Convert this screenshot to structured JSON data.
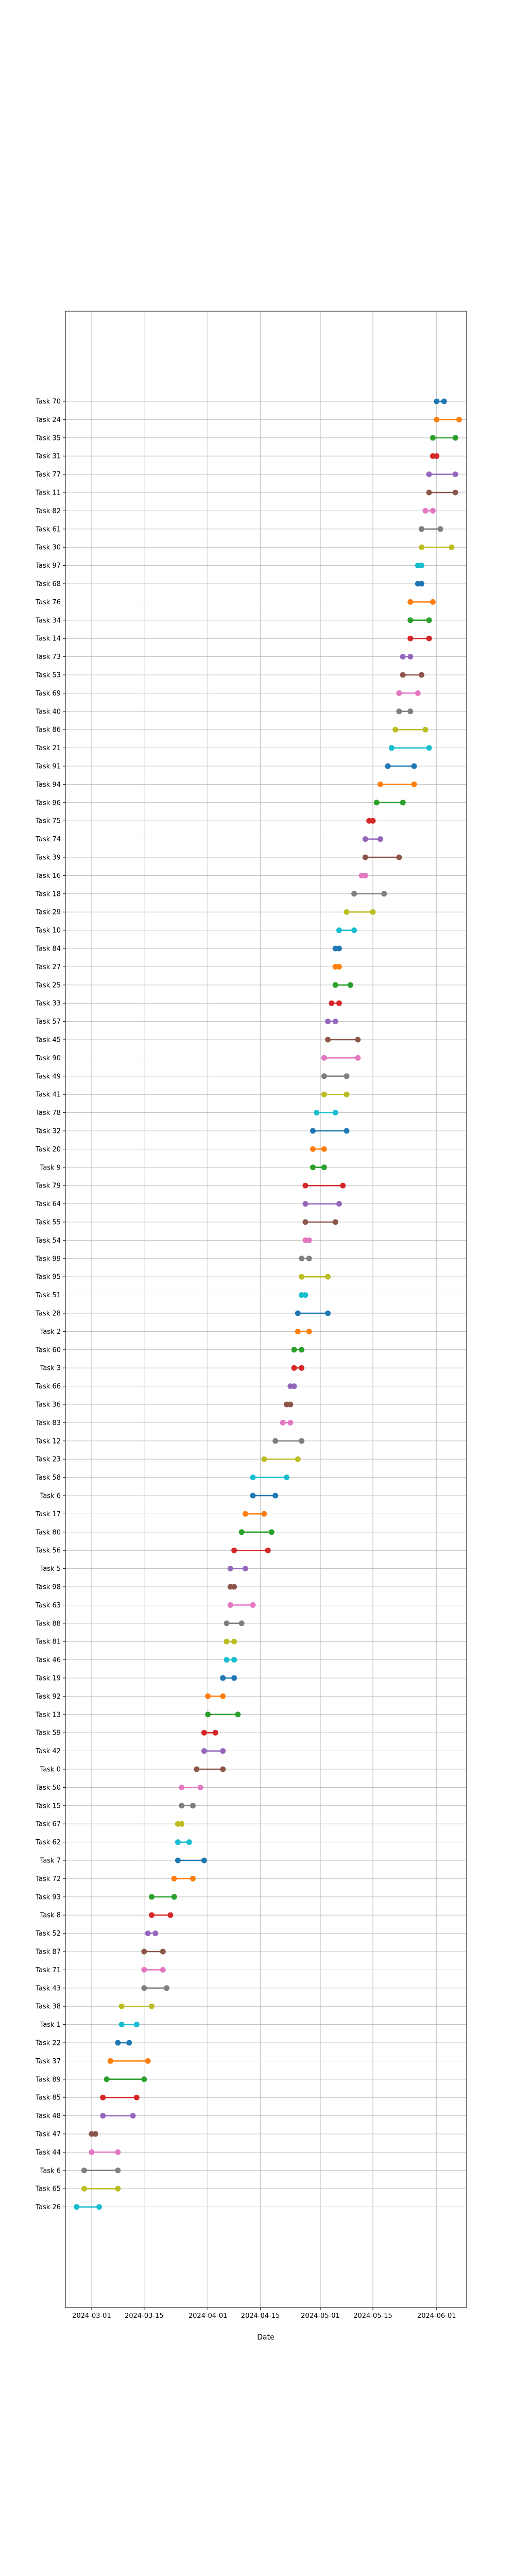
{
  "chart_data": {
    "type": "dumbbell",
    "title": "",
    "xlabel": "Date",
    "ylabel": "",
    "grid": true,
    "legend": "none",
    "x_ticks": [
      "2024-03-01",
      "2024-03-15",
      "2024-04-01",
      "2024-04-15",
      "2024-05-01",
      "2024-05-15",
      "2024-06-01"
    ],
    "xlim": [
      "2024-02-23",
      "2024-06-09"
    ],
    "palette": [
      "#1f77b4",
      "#ff7f0e",
      "#2ca02c",
      "#d62728",
      "#9467bd",
      "#8c564b",
      "#e377c2",
      "#7f7f7f",
      "#bcbd22",
      "#17becf"
    ],
    "tasks": [
      {
        "name": "Task 70",
        "start": "2024-06-01",
        "end": "2024-06-03"
      },
      {
        "name": "Task 24",
        "start": "2024-06-01",
        "end": "2024-06-07"
      },
      {
        "name": "Task 35",
        "start": "2024-05-31",
        "end": "2024-06-06"
      },
      {
        "name": "Task 31",
        "start": "2024-05-31",
        "end": "2024-06-01"
      },
      {
        "name": "Task 77",
        "start": "2024-05-30",
        "end": "2024-06-06"
      },
      {
        "name": "Task 11",
        "start": "2024-05-30",
        "end": "2024-06-06"
      },
      {
        "name": "Task 82",
        "start": "2024-05-29",
        "end": "2024-05-31"
      },
      {
        "name": "Task 61",
        "start": "2024-05-28",
        "end": "2024-06-02"
      },
      {
        "name": "Task 30",
        "start": "2024-05-28",
        "end": "2024-06-05"
      },
      {
        "name": "Task 97",
        "start": "2024-05-27",
        "end": "2024-05-28"
      },
      {
        "name": "Task 68",
        "start": "2024-05-27",
        "end": "2024-05-28"
      },
      {
        "name": "Task 76",
        "start": "2024-05-25",
        "end": "2024-05-31"
      },
      {
        "name": "Task 34",
        "start": "2024-05-25",
        "end": "2024-05-30"
      },
      {
        "name": "Task 14",
        "start": "2024-05-25",
        "end": "2024-05-30"
      },
      {
        "name": "Task 73",
        "start": "2024-05-23",
        "end": "2024-05-25"
      },
      {
        "name": "Task 53",
        "start": "2024-05-23",
        "end": "2024-05-28"
      },
      {
        "name": "Task 69",
        "start": "2024-05-22",
        "end": "2024-05-27"
      },
      {
        "name": "Task 40",
        "start": "2024-05-22",
        "end": "2024-05-25"
      },
      {
        "name": "Task 86",
        "start": "2024-05-21",
        "end": "2024-05-29"
      },
      {
        "name": "Task 21",
        "start": "2024-05-20",
        "end": "2024-05-30"
      },
      {
        "name": "Task 91",
        "start": "2024-05-19",
        "end": "2024-05-26"
      },
      {
        "name": "Task 94",
        "start": "2024-05-17",
        "end": "2024-05-26"
      },
      {
        "name": "Task 96",
        "start": "2024-05-16",
        "end": "2024-05-23"
      },
      {
        "name": "Task 75",
        "start": "2024-05-14",
        "end": "2024-05-15"
      },
      {
        "name": "Task 74",
        "start": "2024-05-13",
        "end": "2024-05-17"
      },
      {
        "name": "Task 39",
        "start": "2024-05-13",
        "end": "2024-05-22"
      },
      {
        "name": "Task 16",
        "start": "2024-05-12",
        "end": "2024-05-13"
      },
      {
        "name": "Task 18",
        "start": "2024-05-10",
        "end": "2024-05-18"
      },
      {
        "name": "Task 29",
        "start": "2024-05-08",
        "end": "2024-05-15"
      },
      {
        "name": "Task 10",
        "start": "2024-05-06",
        "end": "2024-05-10"
      },
      {
        "name": "Task 84",
        "start": "2024-05-05",
        "end": "2024-05-06"
      },
      {
        "name": "Task 27",
        "start": "2024-05-05",
        "end": "2024-05-06"
      },
      {
        "name": "Task 25",
        "start": "2024-05-05",
        "end": "2024-05-09"
      },
      {
        "name": "Task 33",
        "start": "2024-05-04",
        "end": "2024-05-06"
      },
      {
        "name": "Task 57",
        "start": "2024-05-03",
        "end": "2024-05-05"
      },
      {
        "name": "Task 45",
        "start": "2024-05-03",
        "end": "2024-05-11"
      },
      {
        "name": "Task 90",
        "start": "2024-05-02",
        "end": "2024-05-11"
      },
      {
        "name": "Task 49",
        "start": "2024-05-02",
        "end": "2024-05-08"
      },
      {
        "name": "Task 41",
        "start": "2024-05-02",
        "end": "2024-05-08"
      },
      {
        "name": "Task 78",
        "start": "2024-04-30",
        "end": "2024-05-05"
      },
      {
        "name": "Task 32",
        "start": "2024-04-29",
        "end": "2024-05-08"
      },
      {
        "name": "Task 20",
        "start": "2024-04-29",
        "end": "2024-05-02"
      },
      {
        "name": "Task 9",
        "start": "2024-04-29",
        "end": "2024-05-02"
      },
      {
        "name": "Task 79",
        "start": "2024-04-27",
        "end": "2024-05-07"
      },
      {
        "name": "Task 64",
        "start": "2024-04-27",
        "end": "2024-05-06"
      },
      {
        "name": "Task 55",
        "start": "2024-04-27",
        "end": "2024-05-05"
      },
      {
        "name": "Task 54",
        "start": "2024-04-27",
        "end": "2024-04-28"
      },
      {
        "name": "Task 99",
        "start": "2024-04-26",
        "end": "2024-04-28"
      },
      {
        "name": "Task 95",
        "start": "2024-04-26",
        "end": "2024-05-03"
      },
      {
        "name": "Task 51",
        "start": "2024-04-26",
        "end": "2024-04-27"
      },
      {
        "name": "Task 28",
        "start": "2024-04-25",
        "end": "2024-05-03"
      },
      {
        "name": "Task 2",
        "start": "2024-04-25",
        "end": "2024-04-28"
      },
      {
        "name": "Task 60",
        "start": "2024-04-24",
        "end": "2024-04-26"
      },
      {
        "name": "Task 3",
        "start": "2024-04-24",
        "end": "2024-04-26"
      },
      {
        "name": "Task 66",
        "start": "2024-04-23",
        "end": "2024-04-24"
      },
      {
        "name": "Task 36",
        "start": "2024-04-22",
        "end": "2024-04-23"
      },
      {
        "name": "Task 83",
        "start": "2024-04-21",
        "end": "2024-04-23"
      },
      {
        "name": "Task 12",
        "start": "2024-04-19",
        "end": "2024-04-26"
      },
      {
        "name": "Task 23",
        "start": "2024-04-16",
        "end": "2024-04-25"
      },
      {
        "name": "Task 58",
        "start": "2024-04-13",
        "end": "2024-04-22"
      },
      {
        "name": "Task 6",
        "start": "2024-04-13",
        "end": "2024-04-19"
      },
      {
        "name": "Task 17",
        "start": "2024-04-11",
        "end": "2024-04-16"
      },
      {
        "name": "Task 80",
        "start": "2024-04-10",
        "end": "2024-04-18"
      },
      {
        "name": "Task 56",
        "start": "2024-04-08",
        "end": "2024-04-17"
      },
      {
        "name": "Task 5",
        "start": "2024-04-07",
        "end": "2024-04-11"
      },
      {
        "name": "Task 98",
        "start": "2024-04-07",
        "end": "2024-04-08"
      },
      {
        "name": "Task 63",
        "start": "2024-04-07",
        "end": "2024-04-13"
      },
      {
        "name": "Task 88",
        "start": "2024-04-06",
        "end": "2024-04-10"
      },
      {
        "name": "Task 81",
        "start": "2024-04-06",
        "end": "2024-04-08"
      },
      {
        "name": "Task 46",
        "start": "2024-04-06",
        "end": "2024-04-08"
      },
      {
        "name": "Task 19",
        "start": "2024-04-05",
        "end": "2024-04-08"
      },
      {
        "name": "Task 92",
        "start": "2024-04-01",
        "end": "2024-04-05"
      },
      {
        "name": "Task 13",
        "start": "2024-04-01",
        "end": "2024-04-09"
      },
      {
        "name": "Task 59",
        "start": "2024-03-31",
        "end": "2024-04-03"
      },
      {
        "name": "Task 42",
        "start": "2024-03-31",
        "end": "2024-04-05"
      },
      {
        "name": "Task 0",
        "start": "2024-03-29",
        "end": "2024-04-05"
      },
      {
        "name": "Task 50",
        "start": "2024-03-25",
        "end": "2024-03-30"
      },
      {
        "name": "Task 15",
        "start": "2024-03-25",
        "end": "2024-03-28"
      },
      {
        "name": "Task 67",
        "start": "2024-03-24",
        "end": "2024-03-25"
      },
      {
        "name": "Task 62",
        "start": "2024-03-24",
        "end": "2024-03-27"
      },
      {
        "name": "Task 7",
        "start": "2024-03-24",
        "end": "2024-03-31"
      },
      {
        "name": "Task 72",
        "start": "2024-03-23",
        "end": "2024-03-28"
      },
      {
        "name": "Task 93",
        "start": "2024-03-17",
        "end": "2024-03-23"
      },
      {
        "name": "Task 8",
        "start": "2024-03-17",
        "end": "2024-03-22"
      },
      {
        "name": "Task 52",
        "start": "2024-03-16",
        "end": "2024-03-18"
      },
      {
        "name": "Task 87",
        "start": "2024-03-15",
        "end": "2024-03-20"
      },
      {
        "name": "Task 71",
        "start": "2024-03-15",
        "end": "2024-03-20"
      },
      {
        "name": "Task 43",
        "start": "2024-03-15",
        "end": "2024-03-21"
      },
      {
        "name": "Task 38",
        "start": "2024-03-09",
        "end": "2024-03-17"
      },
      {
        "name": "Task 1",
        "start": "2024-03-09",
        "end": "2024-03-13"
      },
      {
        "name": "Task 22",
        "start": "2024-03-08",
        "end": "2024-03-11"
      },
      {
        "name": "Task 37",
        "start": "2024-03-06",
        "end": "2024-03-16"
      },
      {
        "name": "Task 89",
        "start": "2024-03-05",
        "end": "2024-03-15"
      },
      {
        "name": "Task 85",
        "start": "2024-03-04",
        "end": "2024-03-13"
      },
      {
        "name": "Task 48",
        "start": "2024-03-04",
        "end": "2024-03-12"
      },
      {
        "name": "Task 47",
        "start": "2024-03-01",
        "end": "2024-03-02"
      },
      {
        "name": "Task 44",
        "start": "2024-03-01",
        "end": "2024-03-08"
      },
      {
        "name": "Task 6",
        "start": "2024-02-28",
        "end": "2024-03-08"
      },
      {
        "name": "Task 65",
        "start": "2024-02-28",
        "end": "2024-03-08"
      },
      {
        "name": "Task 26",
        "start": "2024-02-26",
        "end": "2024-03-03"
      }
    ]
  }
}
